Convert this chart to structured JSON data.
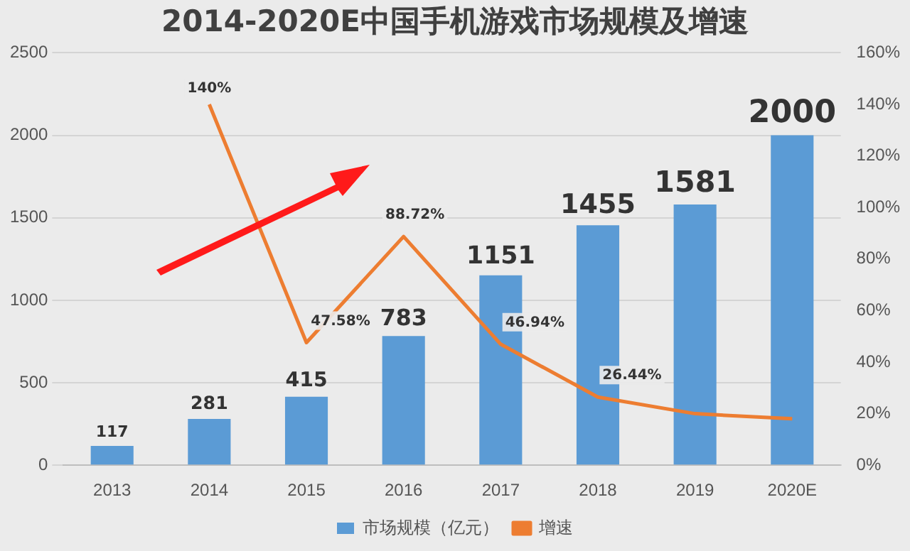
{
  "chart_data": {
    "type": "bar",
    "title": "2014-2020E中国手机游戏市场规模及增速",
    "categories": [
      "2013",
      "2014",
      "2015",
      "2016",
      "2017",
      "2018",
      "2019",
      "2020E"
    ],
    "series": [
      {
        "name": "市场规模（亿元）",
        "color": "#5b9bd5",
        "values": [
          117,
          281,
          415,
          783,
          1151,
          1455,
          1581,
          2000
        ],
        "value_labels": [
          "117",
          "281",
          "415",
          "783",
          "1151",
          "1455",
          "1581",
          "2000"
        ]
      },
      {
        "name": "增速",
        "type": "line",
        "axis": "y2",
        "color": "#ed7d31",
        "values": [
          null,
          140,
          47.58,
          88.72,
          46.94,
          26.44,
          20,
          18
        ],
        "value_labels": [
          null,
          "140%",
          "47.58%",
          "88.72%",
          "46.94%",
          "26.44%",
          null,
          null
        ]
      }
    ],
    "ylim": [
      0,
      2500
    ],
    "yticks": [
      0,
      500,
      1000,
      1500,
      2000,
      2500
    ],
    "y2lim": [
      0,
      160
    ],
    "y2ticks": [
      {
        "value": 0,
        "label": "0%"
      },
      {
        "value": 20,
        "label": "20%"
      },
      {
        "value": 40,
        "label": "40%"
      },
      {
        "value": 60,
        "label": "60%"
      },
      {
        "value": 80,
        "label": "80%"
      },
      {
        "value": 100,
        "label": "100%"
      },
      {
        "value": 120,
        "label": "120%"
      },
      {
        "value": 140,
        "label": "140%"
      },
      {
        "value": 160,
        "label": "160%"
      }
    ],
    "grid": "y",
    "legend": "bottom",
    "marker": "none",
    "line_style": "solid"
  }
}
